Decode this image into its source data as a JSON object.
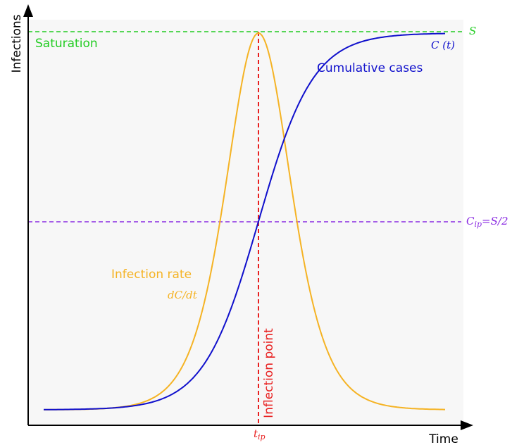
{
  "axes": {
    "y_label": "Infections",
    "x_label": "Time"
  },
  "lines": {
    "saturation": {
      "label": "Saturation",
      "symbol": "S"
    },
    "half": {
      "label": "C",
      "sub": "ip",
      "rest": "=S/2"
    },
    "inflection": {
      "label": "Inflection point",
      "symbol": "t",
      "sub": "ip"
    }
  },
  "curves": {
    "cumulative": {
      "label": "Cumulative cases",
      "symbol": "C (t)"
    },
    "rate": {
      "label": "Infection rate",
      "symbol": "dC/dt"
    }
  }
}
